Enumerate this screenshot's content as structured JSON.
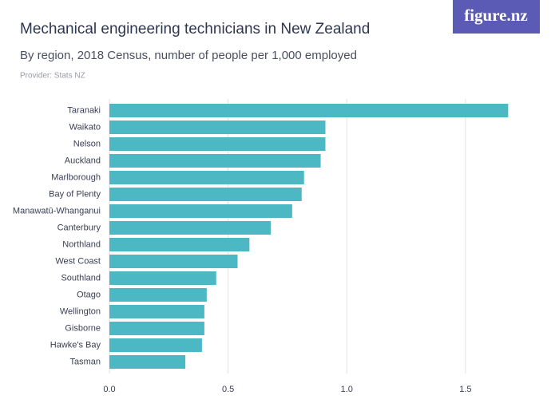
{
  "brand": "figure.nz",
  "chart_data": {
    "type": "bar",
    "orientation": "horizontal",
    "title": "Mechanical engineering technicians in New Zealand",
    "subtitle": "By region, 2018 Census, number of people per 1,000 employed",
    "source": "Provider: Stats NZ",
    "categories": [
      "Taranaki",
      "Waikato",
      "Nelson",
      "Auckland",
      "Marlborough",
      "Bay of Plenty",
      "Manawatū-Whanganui",
      "Canterbury",
      "Northland",
      "West Coast",
      "Southland",
      "Otago",
      "Wellington",
      "Gisborne",
      "Hawke's Bay",
      "Tasman"
    ],
    "values": [
      1.68,
      0.91,
      0.91,
      0.89,
      0.82,
      0.81,
      0.77,
      0.68,
      0.59,
      0.54,
      0.45,
      0.41,
      0.4,
      0.4,
      0.39,
      0.32
    ],
    "color": "#4cb8c4",
    "xlim": [
      0,
      1.81
    ],
    "xticks": [
      {
        "value": 0,
        "label": "0.0"
      },
      0.5,
      {
        "value": 1,
        "label": "1.0"
      },
      1.5
    ],
    "grid": true
  }
}
